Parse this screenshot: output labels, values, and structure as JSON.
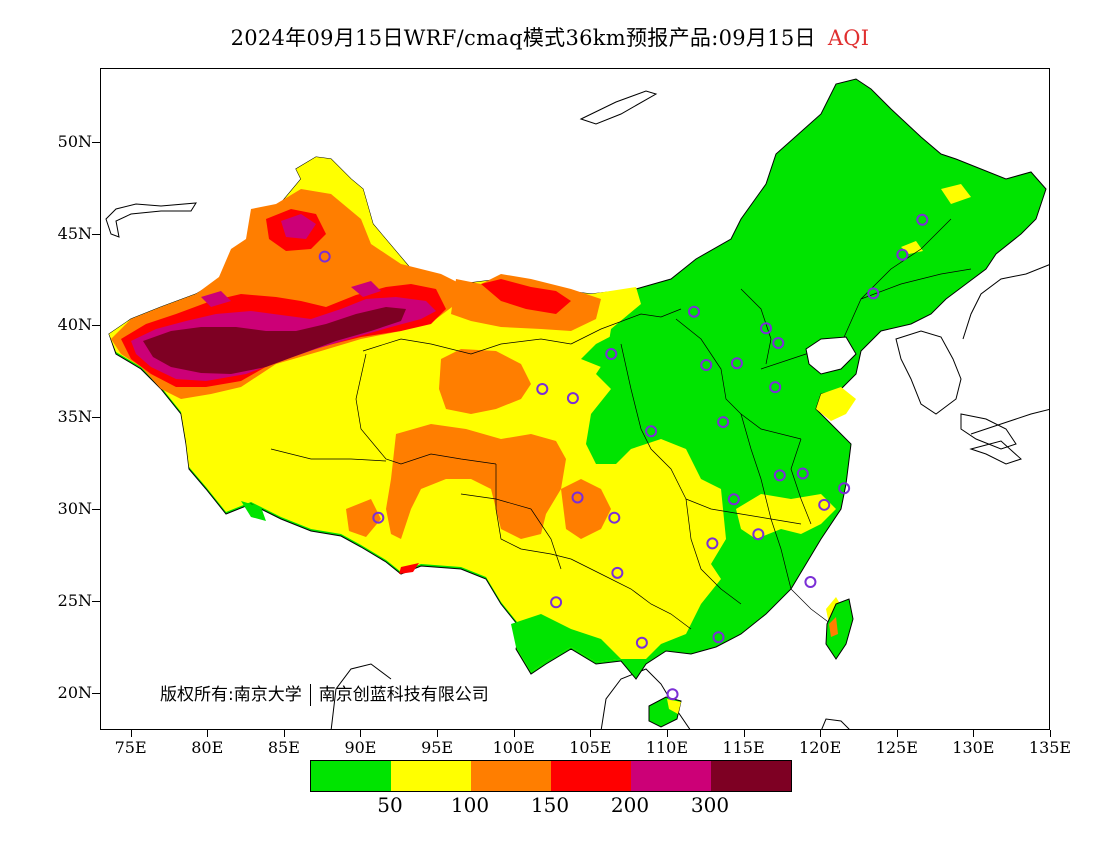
{
  "title": {
    "main": "2024年09月15日WRF/cmaq模式36km预报产品:09月15日",
    "variable": "AQI",
    "variable_color": "#e03030"
  },
  "map": {
    "region": "China",
    "lon_range": [
      73,
      135
    ],
    "lat_range": [
      18,
      54
    ],
    "lat_labels": [
      "50N",
      "45N",
      "40N",
      "35N",
      "30N",
      "25N",
      "20N"
    ],
    "lon_labels": [
      "75E",
      "80E",
      "85E",
      "90E",
      "95E",
      "100E",
      "105E",
      "110E",
      "115E",
      "120E",
      "125E",
      "130E",
      "135E"
    ],
    "station_marker_color": "#7b2fd6",
    "stations": [
      {
        "lon": 87.6,
        "lat": 43.8
      },
      {
        "lon": 91.1,
        "lat": 29.6
      },
      {
        "lon": 101.8,
        "lat": 36.6
      },
      {
        "lon": 103.8,
        "lat": 36.1
      },
      {
        "lon": 106.3,
        "lat": 38.5
      },
      {
        "lon": 111.7,
        "lat": 40.8
      },
      {
        "lon": 112.5,
        "lat": 37.9
      },
      {
        "lon": 114.5,
        "lat": 38.0
      },
      {
        "lon": 116.4,
        "lat": 39.9
      },
      {
        "lon": 117.2,
        "lat": 39.1
      },
      {
        "lon": 117.0,
        "lat": 36.7
      },
      {
        "lon": 113.6,
        "lat": 34.8
      },
      {
        "lon": 108.9,
        "lat": 34.3
      },
      {
        "lon": 104.1,
        "lat": 30.7
      },
      {
        "lon": 106.5,
        "lat": 29.6
      },
      {
        "lon": 106.7,
        "lat": 26.6
      },
      {
        "lon": 102.7,
        "lat": 25.0
      },
      {
        "lon": 108.3,
        "lat": 22.8
      },
      {
        "lon": 110.3,
        "lat": 20.0
      },
      {
        "lon": 113.3,
        "lat": 23.1
      },
      {
        "lon": 112.9,
        "lat": 28.2
      },
      {
        "lon": 114.3,
        "lat": 30.6
      },
      {
        "lon": 115.9,
        "lat": 28.7
      },
      {
        "lon": 117.3,
        "lat": 31.9
      },
      {
        "lon": 118.8,
        "lat": 32.0
      },
      {
        "lon": 120.2,
        "lat": 30.3
      },
      {
        "lon": 121.5,
        "lat": 31.2
      },
      {
        "lon": 119.3,
        "lat": 26.1
      },
      {
        "lon": 123.4,
        "lat": 41.8
      },
      {
        "lon": 125.3,
        "lat": 43.9
      },
      {
        "lon": 126.6,
        "lat": 45.8
      }
    ]
  },
  "legend": {
    "colors": [
      "#00e400",
      "#ffff00",
      "#ff7e00",
      "#ff0000",
      "#cc0077",
      "#7e0023"
    ],
    "labels": [
      "50",
      "100",
      "150",
      "200",
      "300"
    ]
  },
  "copyright": {
    "owner": "版权所有:南京大学",
    "partner": "南京创蓝科技有限公司"
  }
}
